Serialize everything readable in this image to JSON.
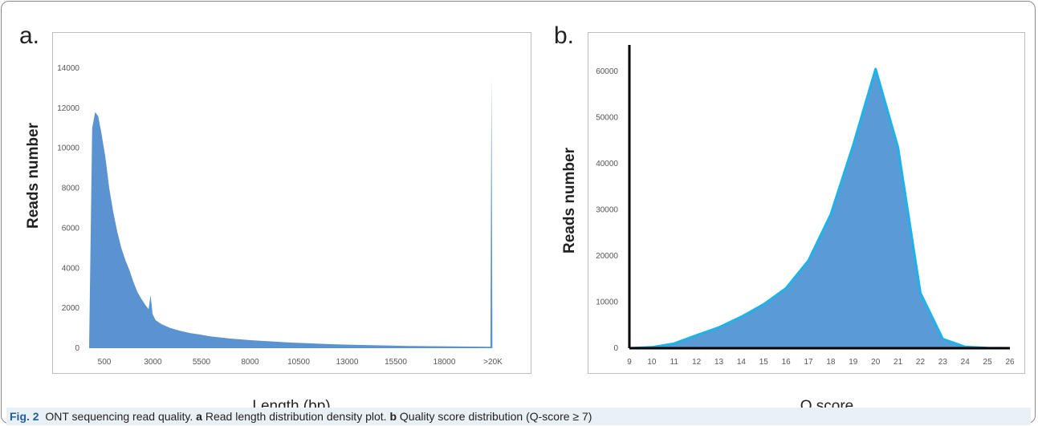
{
  "caption": {
    "fig_label": "Fig. 2",
    "title": "ONT sequencing read quality.",
    "a_letter": "a",
    "a_text": "Read length distribution density plot.",
    "b_letter": "b",
    "b_text": "Quality score distribution (Q-score ≥ 7)"
  },
  "colors": {
    "fill_a": "#5b93d0",
    "fill_b": "#5b9bd5",
    "stroke_b": "#1fb2e8",
    "axis_b": "#000000"
  },
  "chart_data": [
    {
      "panel_letter": "a.",
      "type": "area",
      "xlabel": "Length (bp)",
      "ylabel": "Reads number",
      "ylim": [
        0,
        14000
      ],
      "yticks": [
        0,
        2000,
        4000,
        6000,
        8000,
        10000,
        12000,
        14000
      ],
      "xticks": [
        "500",
        "3000",
        "5500",
        "8000",
        "10500",
        "13000",
        "15500",
        "18000",
        ">20K"
      ],
      "xlim": [
        0,
        20700
      ],
      "grid": false,
      "x": [
        0,
        150,
        300,
        450,
        600,
        800,
        1000,
        1200,
        1400,
        1600,
        1800,
        2000,
        2200,
        2400,
        2600,
        2800,
        2950,
        3050,
        3150,
        3300,
        3600,
        4000,
        4500,
        5000,
        5500,
        6000,
        7000,
        8000,
        9000,
        10000,
        11000,
        12000,
        13000,
        14000,
        15000,
        16000,
        17000,
        18000,
        19000,
        19900,
        19950,
        20000,
        20050
      ],
      "y": [
        0,
        11000,
        11800,
        11600,
        10800,
        9600,
        8000,
        6800,
        5800,
        5000,
        4400,
        3900,
        3300,
        2800,
        2450,
        2150,
        1950,
        2650,
        1700,
        1400,
        1200,
        1020,
        870,
        760,
        680,
        590,
        480,
        400,
        340,
        280,
        240,
        200,
        170,
        150,
        130,
        110,
        100,
        90,
        80,
        70,
        13600,
        10,
        0
      ]
    },
    {
      "panel_letter": "b.",
      "type": "area",
      "xlabel": "Q score",
      "ylabel": "Reads number",
      "ylim": [
        0,
        65000
      ],
      "yticks": [
        0,
        10000,
        20000,
        30000,
        40000,
        50000,
        60000
      ],
      "x": [
        9,
        10,
        11,
        12,
        13,
        14,
        15,
        16,
        17,
        18,
        19,
        20,
        21,
        22,
        23,
        24,
        25,
        26
      ],
      "xlim": [
        9,
        26
      ],
      "grid": false,
      "y": [
        0,
        200,
        1000,
        2800,
        4500,
        6800,
        9500,
        13000,
        19000,
        29000,
        44000,
        60500,
        43500,
        12000,
        2000,
        300,
        50,
        0
      ]
    }
  ]
}
